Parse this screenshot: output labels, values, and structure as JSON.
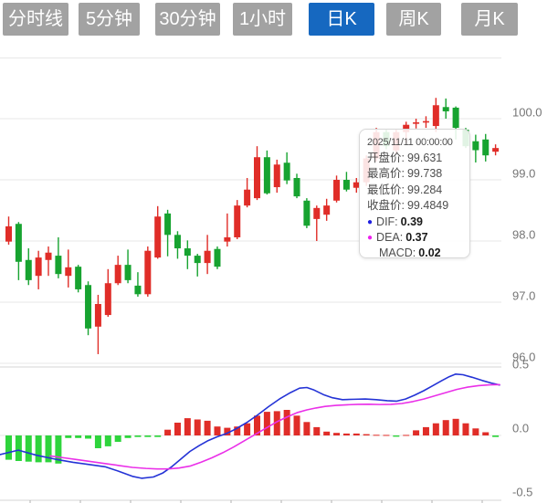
{
  "tabs": {
    "active_index": 4,
    "items": [
      {
        "label": "分时线"
      },
      {
        "label": "5分钟"
      },
      {
        "label": "30分钟"
      },
      {
        "label": "1小时"
      },
      {
        "label": "日K"
      },
      {
        "label": "周K"
      },
      {
        "label": "月K"
      }
    ]
  },
  "tooltip": {
    "date": "2025/11/11 00:00:00",
    "open_label": "开盘价:",
    "open_value": "99.631",
    "high_label": "最高价:",
    "high_value": "99.738",
    "low_label": "最低价:",
    "low_value": "99.284",
    "close_label": "收盘价:",
    "close_value": "99.4849",
    "dif_label": "DIF:",
    "dif_value": "0.39",
    "dea_label": "DEA:",
    "dea_value": "0.37",
    "macd_label": "MACD:",
    "macd_value": "0.02",
    "dot_icon": "●"
  },
  "colors": {
    "up": "#e02d28",
    "down": "#17a330",
    "macd_up": "#e02d28",
    "macd_down": "#2ed43c",
    "dif_line": "#2433d6",
    "dea_line": "#ea30e8",
    "tab_bg": "#a2a2a2",
    "tab_active_bg": "#1668c0",
    "grid": "#e7e7e7",
    "separator": "#d4d4d4",
    "axis_text": "#757575"
  },
  "chart_data": {
    "type": "candlestick",
    "panels": [
      {
        "type": "candlestick",
        "name": "price",
        "ylim": [
          95.9,
          101.0
        ],
        "yticks": [
          100.0,
          99.0,
          98.0,
          97.0,
          96.0
        ],
        "grid": true,
        "candles": [
          [
            97.99,
            98.4,
            97.94,
            98.24
          ],
          [
            98.28,
            98.31,
            97.36,
            97.66
          ],
          [
            97.69,
            97.88,
            97.28,
            97.36
          ],
          [
            97.43,
            97.84,
            97.21,
            97.73
          ],
          [
            97.69,
            97.91,
            97.43,
            97.81
          ],
          [
            97.76,
            98.06,
            97.39,
            97.46
          ],
          [
            97.43,
            97.86,
            97.24,
            97.57
          ],
          [
            97.58,
            97.61,
            97.16,
            97.21
          ],
          [
            97.28,
            97.34,
            96.46,
            96.57
          ],
          [
            96.6,
            97.12,
            96.15,
            96.97
          ],
          [
            96.79,
            97.54,
            96.76,
            97.31
          ],
          [
            97.31,
            97.76,
            97.28,
            97.61
          ],
          [
            97.61,
            97.86,
            97.31,
            97.36
          ],
          [
            97.27,
            97.49,
            97.09,
            97.13
          ],
          [
            97.13,
            97.91,
            97.09,
            97.84
          ],
          [
            97.73,
            98.57,
            97.71,
            98.4
          ],
          [
            98.45,
            98.51,
            97.75,
            98.1
          ],
          [
            98.1,
            98.16,
            97.71,
            97.88
          ],
          [
            97.88,
            98.01,
            97.54,
            97.76
          ],
          [
            97.76,
            97.79,
            97.42,
            97.64
          ],
          [
            97.64,
            98.1,
            97.46,
            97.84
          ],
          [
            97.87,
            97.91,
            97.54,
            97.58
          ],
          [
            97.99,
            98.45,
            97.91,
            98.06
          ],
          [
            98.06,
            98.67,
            98.03,
            98.58
          ],
          [
            98.58,
            99.03,
            98.55,
            98.84
          ],
          [
            98.7,
            99.55,
            98.67,
            99.37
          ],
          [
            99.37,
            99.48,
            98.76,
            98.78
          ],
          [
            98.88,
            99.33,
            98.79,
            99.25
          ],
          [
            99.28,
            99.45,
            98.93,
            98.99
          ],
          [
            99.03,
            99.1,
            98.7,
            98.73
          ],
          [
            98.66,
            98.7,
            98.21,
            98.25
          ],
          [
            98.36,
            98.58,
            98.0,
            98.54
          ],
          [
            98.43,
            98.69,
            98.33,
            98.58
          ],
          [
            98.66,
            99.07,
            98.63,
            99.0
          ],
          [
            99.0,
            99.13,
            98.81,
            98.84
          ],
          [
            98.87,
            99.03,
            98.79,
            98.96
          ],
          [
            98.96,
            99.4,
            98.9,
            99.35
          ],
          [
            99.35,
            99.85,
            99.3,
            99.78
          ],
          [
            99.78,
            99.82,
            99.5,
            99.55
          ],
          [
            99.48,
            99.82,
            99.42,
            99.78
          ],
          [
            99.78,
            99.95,
            99.6,
            99.9
          ],
          [
            99.93,
            100.0,
            99.84,
            99.94
          ],
          [
            99.94,
            100.04,
            99.85,
            99.96
          ],
          [
            99.88,
            100.34,
            99.78,
            100.22
          ],
          [
            100.19,
            100.33,
            100.0,
            100.12
          ],
          [
            100.18,
            100.2,
            99.66,
            99.85
          ],
          [
            99.82,
            99.85,
            99.52,
            99.55
          ],
          [
            99.631,
            99.738,
            99.284,
            99.4849
          ],
          [
            99.66,
            99.75,
            99.3,
            99.4
          ],
          [
            99.46,
            99.58,
            99.4,
            99.52
          ]
        ]
      },
      {
        "type": "macd",
        "name": "macd",
        "ylim": [
          -0.55,
          0.55
        ],
        "yticks": [
          0.5,
          0.0,
          -0.5
        ],
        "histogram": [
          -0.19,
          -0.2,
          -0.205,
          -0.21,
          -0.21,
          -0.22,
          -0.02,
          -0.02,
          -0.025,
          -0.1,
          -0.085,
          -0.05,
          -0.02,
          -0.012,
          -0.012,
          -0.012,
          0.045,
          0.1,
          0.135,
          0.125,
          0.115,
          0.07,
          0.06,
          0.07,
          0.095,
          0.155,
          0.185,
          0.19,
          0.2,
          0.155,
          0.105,
          0.065,
          0.03,
          0.02,
          0.015,
          0.015,
          0.01,
          0.005,
          0.004,
          -0.01,
          0.004,
          0.04,
          0.065,
          0.095,
          0.12,
          0.13,
          0.095,
          0.055,
          0.025,
          -0.012
        ],
        "series": [
          {
            "name": "DIF",
            "color": "#2433d6",
            "points": [
              [
                0,
                -0.15
              ],
              [
                20,
                -0.115
              ],
              [
                40,
                -0.155
              ],
              [
                60,
                -0.185
              ],
              [
                80,
                -0.21
              ],
              [
                100,
                -0.23
              ],
              [
                115,
                -0.245
              ],
              [
                130,
                -0.28
              ],
              [
                145,
                -0.32
              ],
              [
                155,
                -0.335
              ],
              [
                168,
                -0.325
              ],
              [
                178,
                -0.295
              ],
              [
                188,
                -0.245
              ],
              [
                198,
                -0.185
              ],
              [
                208,
                -0.125
              ],
              [
                218,
                -0.08
              ],
              [
                228,
                -0.04
              ],
              [
                238,
                -0.01
              ],
              [
                248,
                0.015
              ],
              [
                258,
                0.05
              ],
              [
                270,
                0.1
              ],
              [
                282,
                0.16
              ],
              [
                294,
                0.225
              ],
              [
                306,
                0.285
              ],
              [
                318,
                0.335
              ],
              [
                328,
                0.37
              ],
              [
                336,
                0.375
              ],
              [
                344,
                0.355
              ],
              [
                354,
                0.32
              ],
              [
                364,
                0.295
              ],
              [
                375,
                0.28
              ],
              [
                388,
                0.283
              ],
              [
                400,
                0.285
              ],
              [
                412,
                0.28
              ],
              [
                424,
                0.272
              ],
              [
                434,
                0.268
              ],
              [
                444,
                0.285
              ],
              [
                454,
                0.315
              ],
              [
                464,
                0.35
              ],
              [
                474,
                0.39
              ],
              [
                484,
                0.43
              ],
              [
                492,
                0.46
              ],
              [
                499,
                0.48
              ],
              [
                507,
                0.475
              ],
              [
                517,
                0.455
              ],
              [
                528,
                0.43
              ],
              [
                538,
                0.41
              ],
              [
                547,
                0.395
              ]
            ]
          },
          {
            "name": "DEA",
            "color": "#ea30e8",
            "points": [
              [
                55,
                -0.16
              ],
              [
                70,
                -0.175
              ],
              [
                85,
                -0.19
              ],
              [
                100,
                -0.205
              ],
              [
                115,
                -0.22
              ],
              [
                130,
                -0.235
              ],
              [
                145,
                -0.25
              ],
              [
                160,
                -0.258
              ],
              [
                172,
                -0.262
              ],
              [
                184,
                -0.262
              ],
              [
                196,
                -0.255
              ],
              [
                208,
                -0.24
              ],
              [
                220,
                -0.21
              ],
              [
                232,
                -0.175
              ],
              [
                244,
                -0.135
              ],
              [
                256,
                -0.09
              ],
              [
                268,
                -0.04
              ],
              [
                280,
                0.01
              ],
              [
                292,
                0.06
              ],
              [
                304,
                0.11
              ],
              [
                316,
                0.15
              ],
              [
                326,
                0.18
              ],
              [
                336,
                0.2
              ],
              [
                346,
                0.215
              ],
              [
                356,
                0.227
              ],
              [
                368,
                0.235
              ],
              [
                380,
                0.24
              ],
              [
                392,
                0.243
              ],
              [
                404,
                0.244
              ],
              [
                416,
                0.242
              ],
              [
                428,
                0.243
              ],
              [
                440,
                0.25
              ],
              [
                452,
                0.265
              ],
              [
                464,
                0.285
              ],
              [
                476,
                0.31
              ],
              [
                488,
                0.335
              ],
              [
                500,
                0.36
              ],
              [
                512,
                0.378
              ],
              [
                524,
                0.39
              ],
              [
                536,
                0.396
              ],
              [
                547,
                0.398
              ]
            ]
          }
        ]
      }
    ]
  }
}
